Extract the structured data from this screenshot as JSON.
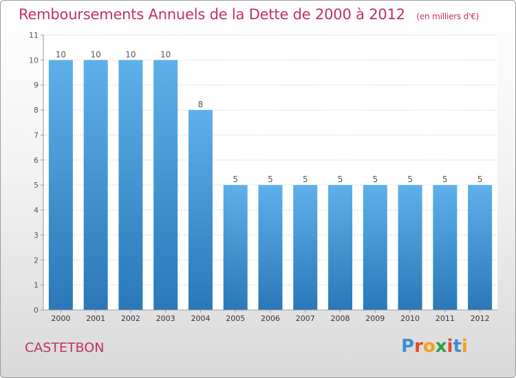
{
  "header": {
    "title": "Remboursements Annuels de la Dette de 2000 à 2012",
    "subtitle": "(en milliers d'€)"
  },
  "footer": {
    "city": "CASTETBON",
    "logo_text": "Proxiti"
  },
  "colors": {
    "accent": "#c0306a",
    "bar_top": "#5eb0ea",
    "bar_bottom": "#2a78b8"
  },
  "chart_data": {
    "type": "bar",
    "categories": [
      "2000",
      "2001",
      "2002",
      "2003",
      "2004",
      "2005",
      "2006",
      "2007",
      "2008",
      "2009",
      "2010",
      "2011",
      "2012"
    ],
    "values": [
      10,
      10,
      10,
      10,
      8,
      5,
      5,
      5,
      5,
      5,
      5,
      5,
      5
    ],
    "title": "Remboursements Annuels de la Dette de 2000 à 2012",
    "xlabel": "",
    "ylabel": "",
    "ylim": [
      0,
      11
    ],
    "yticks": [
      0,
      1,
      2,
      3,
      4,
      5,
      6,
      7,
      8,
      9,
      10,
      11
    ],
    "grid": true,
    "data_labels": true
  }
}
